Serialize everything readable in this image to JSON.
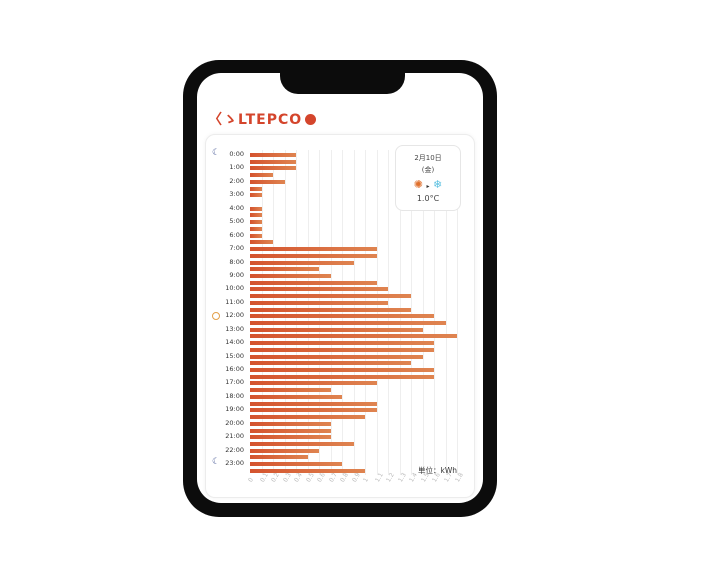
{
  "logo": {
    "text": "くらしTEPCO",
    "display": "〈ゝLTEPCO",
    "badge": "web"
  },
  "weather": {
    "date": "2月10日",
    "weekday": "(金)",
    "from_icon": "sun-icon",
    "to_icon": "snowflake-icon",
    "temperature": "1.0°C"
  },
  "unit_label": "単位：kWh",
  "colors": {
    "bar_start": "#d4532e",
    "bar_end": "#df8450",
    "frame": "#0c0c0c"
  },
  "chart_data": {
    "type": "bar",
    "orientation": "horizontal",
    "categories": [
      "0:00",
      "0:30",
      "1:00",
      "1:30",
      "2:00",
      "2:30",
      "3:00",
      "3:30",
      "4:00",
      "4:30",
      "5:00",
      "5:30",
      "6:00",
      "6:30",
      "7:00",
      "7:30",
      "8:00",
      "8:30",
      "9:00",
      "9:30",
      "10:00",
      "10:30",
      "11:00",
      "11:30",
      "12:00",
      "12:30",
      "13:00",
      "13:30",
      "14:00",
      "14:30",
      "15:00",
      "15:30",
      "16:00",
      "16:30",
      "17:00",
      "17:30",
      "18:00",
      "18:30",
      "19:00",
      "19:30",
      "20:00",
      "20:30",
      "21:00",
      "21:30",
      "22:00",
      "22:30",
      "23:00",
      "23:30"
    ],
    "values": [
      0.4,
      0.4,
      0.4,
      0.2,
      0.3,
      0.1,
      0.1,
      0,
      0.1,
      0.1,
      0.1,
      0.1,
      0.1,
      0.2,
      1.1,
      1.1,
      0.9,
      0.6,
      0.7,
      1.1,
      1.2,
      1.4,
      1.2,
      1.4,
      1.6,
      1.7,
      1.5,
      1.8,
      1.6,
      1.6,
      1.5,
      1.4,
      1.6,
      1.6,
      1.1,
      0.7,
      0.8,
      1.1,
      1.1,
      1.0,
      0.7,
      0.7,
      0.7,
      0.9,
      0.6,
      0.5,
      0.8,
      1.0
    ],
    "y_tick_labels": [
      "0:00",
      "1:00",
      "2:00",
      "3:00",
      "4:00",
      "5:00",
      "6:00",
      "7:00",
      "8:00",
      "9:00",
      "10:00",
      "11:00",
      "12:00",
      "13:00",
      "14:00",
      "15:00",
      "16:00",
      "17:00",
      "18:00",
      "19:00",
      "20:00",
      "21:00",
      "22:00",
      "23:00"
    ],
    "x_tick_labels": [
      "0",
      "0.1",
      "0.2",
      "0.3",
      "0.4",
      "0.5",
      "0.6",
      "0.7",
      "0.8",
      "0.9",
      "1",
      "1.1",
      "1.2",
      "1.3",
      "1.4",
      "1.5",
      "1.6",
      "1.7",
      "1.8"
    ],
    "xlim": [
      0,
      1.8
    ],
    "xlabel": "単位：kWh",
    "grid": "vertical",
    "markers": [
      {
        "at": "0:00",
        "icon": "moon-icon"
      },
      {
        "at": "12:00",
        "icon": "sun-icon"
      },
      {
        "at": "23:00",
        "icon": "moon-icon"
      }
    ]
  }
}
